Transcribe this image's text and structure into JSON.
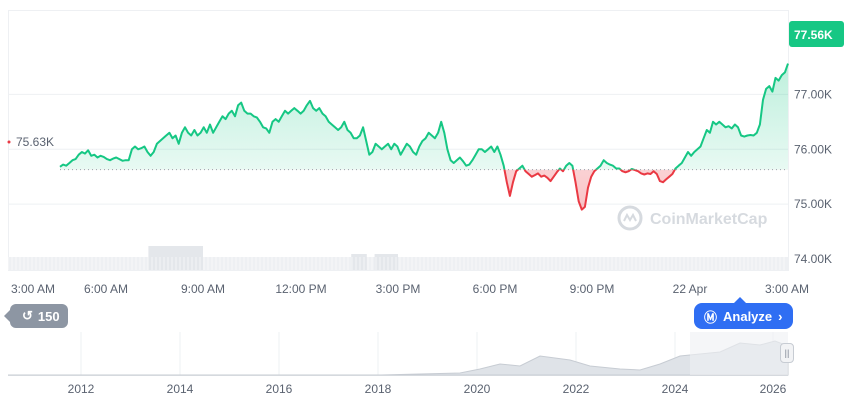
{
  "chart_data": {
    "type": "area",
    "price_badge": "77.56K",
    "open_label": "75.63K",
    "y_ticks": [
      {
        "value": 77000,
        "label": "77.00K"
      },
      {
        "value": 76000,
        "label": "76.00K"
      },
      {
        "value": 75000,
        "label": "75.00K"
      },
      {
        "value": 74000,
        "label": "74.00K"
      }
    ],
    "ylim": [
      73500,
      78000
    ],
    "x_ticks": [
      "3:00 AM",
      "6:00 AM",
      "9:00 AM",
      "12:00 PM",
      "3:00 PM",
      "6:00 PM",
      "9:00 PM",
      "22 Apr",
      "3:00 AM"
    ],
    "baseline": 75630,
    "series": [
      {
        "values": [
          75680,
          75720,
          75700,
          75750,
          75800,
          75820,
          75900,
          75950,
          75920,
          75980,
          75880,
          75900,
          75850,
          75880,
          75860,
          75820,
          75800,
          75830,
          75850,
          75820,
          75790,
          75800,
          75800,
          76000,
          76050,
          76000,
          76020,
          76050,
          75950,
          75880,
          75950,
          76100,
          76150,
          76200,
          76250,
          76300,
          76200,
          76250,
          76100,
          76300,
          76400,
          76300,
          76250,
          76350,
          76250,
          76300,
          76400,
          76300,
          76450,
          76300,
          76400,
          76500,
          76600,
          76550,
          76650,
          76700,
          76600,
          76800,
          76850,
          76700,
          76650,
          76650,
          76600,
          76580,
          76500,
          76400,
          76380,
          76300,
          76500,
          76550,
          76500,
          76600,
          76700,
          76650,
          76700,
          76750,
          76700,
          76650,
          76700,
          76800,
          76880,
          76750,
          76700,
          76750,
          76650,
          76600,
          76500,
          76450,
          76400,
          76350,
          76400,
          76500,
          76350,
          76300,
          76200,
          76200,
          76250,
          76400,
          76150,
          75900,
          75950,
          76100,
          76050,
          76000,
          76050,
          76100,
          76000,
          76100,
          76050,
          75900,
          76000,
          76100,
          76050,
          75950,
          75900,
          76050,
          76150,
          76200,
          76300,
          76250,
          76200,
          76300,
          76500,
          76300,
          76000,
          75800,
          75750,
          75800,
          75850,
          75780,
          75700,
          75720,
          75800,
          75900,
          76000,
          76000,
          75950,
          76000,
          76050,
          75950,
          76050,
          75900,
          75700,
          75400,
          75150,
          75400,
          75600,
          75650,
          75700,
          75600,
          75550,
          75500,
          75530,
          75560,
          75500,
          75520,
          75480,
          75420,
          75500,
          75580,
          75650,
          75600,
          75700,
          75750,
          75700,
          75400,
          75050,
          74900,
          74950,
          75300,
          75500,
          75600,
          75650,
          75700,
          75800,
          75750,
          75720,
          75700,
          75650,
          75650,
          75600,
          75580,
          75600,
          75640,
          75620,
          75600,
          75560,
          75540,
          75560,
          75550,
          75600,
          75550,
          75420,
          75400,
          75450,
          75500,
          75550,
          75650,
          75700,
          75750,
          75850,
          75950,
          75880,
          75950,
          76000,
          76050,
          76200,
          76350,
          76300,
          76500,
          76450,
          76500,
          76450,
          76400,
          76420,
          76380,
          76450,
          76400,
          76250,
          76230,
          76250,
          76260,
          76250,
          76300,
          76450,
          76900,
          77100,
          77150,
          77050,
          77300,
          77250,
          77350,
          77400,
          77560
        ]
      }
    ],
    "volume_blocks": [
      {
        "start": 0.18,
        "end": 0.25,
        "level": 3
      },
      {
        "start": 0.44,
        "end": 0.46,
        "level": 2
      },
      {
        "start": 0.47,
        "end": 0.5,
        "level": 2
      }
    ],
    "colors": {
      "up": "#16c784",
      "down": "#ea3943",
      "accent_blue": "#2f6ef3"
    }
  },
  "watermark": "CoinMarketCap",
  "navigator": {
    "years": [
      "2012",
      "2014",
      "2016",
      "2018",
      "2020",
      "2022",
      "2024",
      "2026"
    ],
    "history_label": "150",
    "analyze_label": "Analyze"
  }
}
